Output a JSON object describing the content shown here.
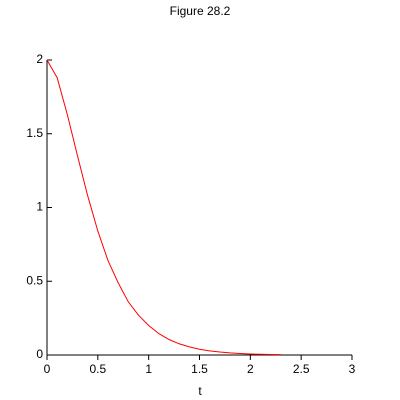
{
  "chart_data": {
    "type": "line",
    "title": "Figure 28.2",
    "x_label": "t",
    "x": [
      0,
      0.1,
      0.2,
      0.3,
      0.4,
      0.5,
      0.6,
      0.7,
      0.8,
      0.9,
      1.0,
      1.1,
      1.2,
      1.3,
      1.4,
      1.5,
      1.6,
      1.7,
      1.8,
      1.9,
      2.0,
      2.1,
      2.2,
      2.3
    ],
    "series": [
      {
        "color": "#ff0000",
        "values": [
          2,
          1.88,
          1.63,
          1.35,
          1.08,
          0.84,
          0.64,
          0.49,
          0.36,
          0.27,
          0.2,
          0.145,
          0.105,
          0.076,
          0.055,
          0.039,
          0.028,
          0.02,
          0.014,
          0.01,
          0.007,
          0.005,
          0.0035,
          0.0025
        ]
      }
    ],
    "xlim": [
      0,
      3
    ],
    "xticks": [
      0,
      0.5,
      1,
      1.5,
      2,
      2.5,
      3
    ],
    "ylim": [
      0,
      2
    ],
    "yticks": [
      0,
      0.5,
      1,
      1.5,
      2
    ]
  }
}
